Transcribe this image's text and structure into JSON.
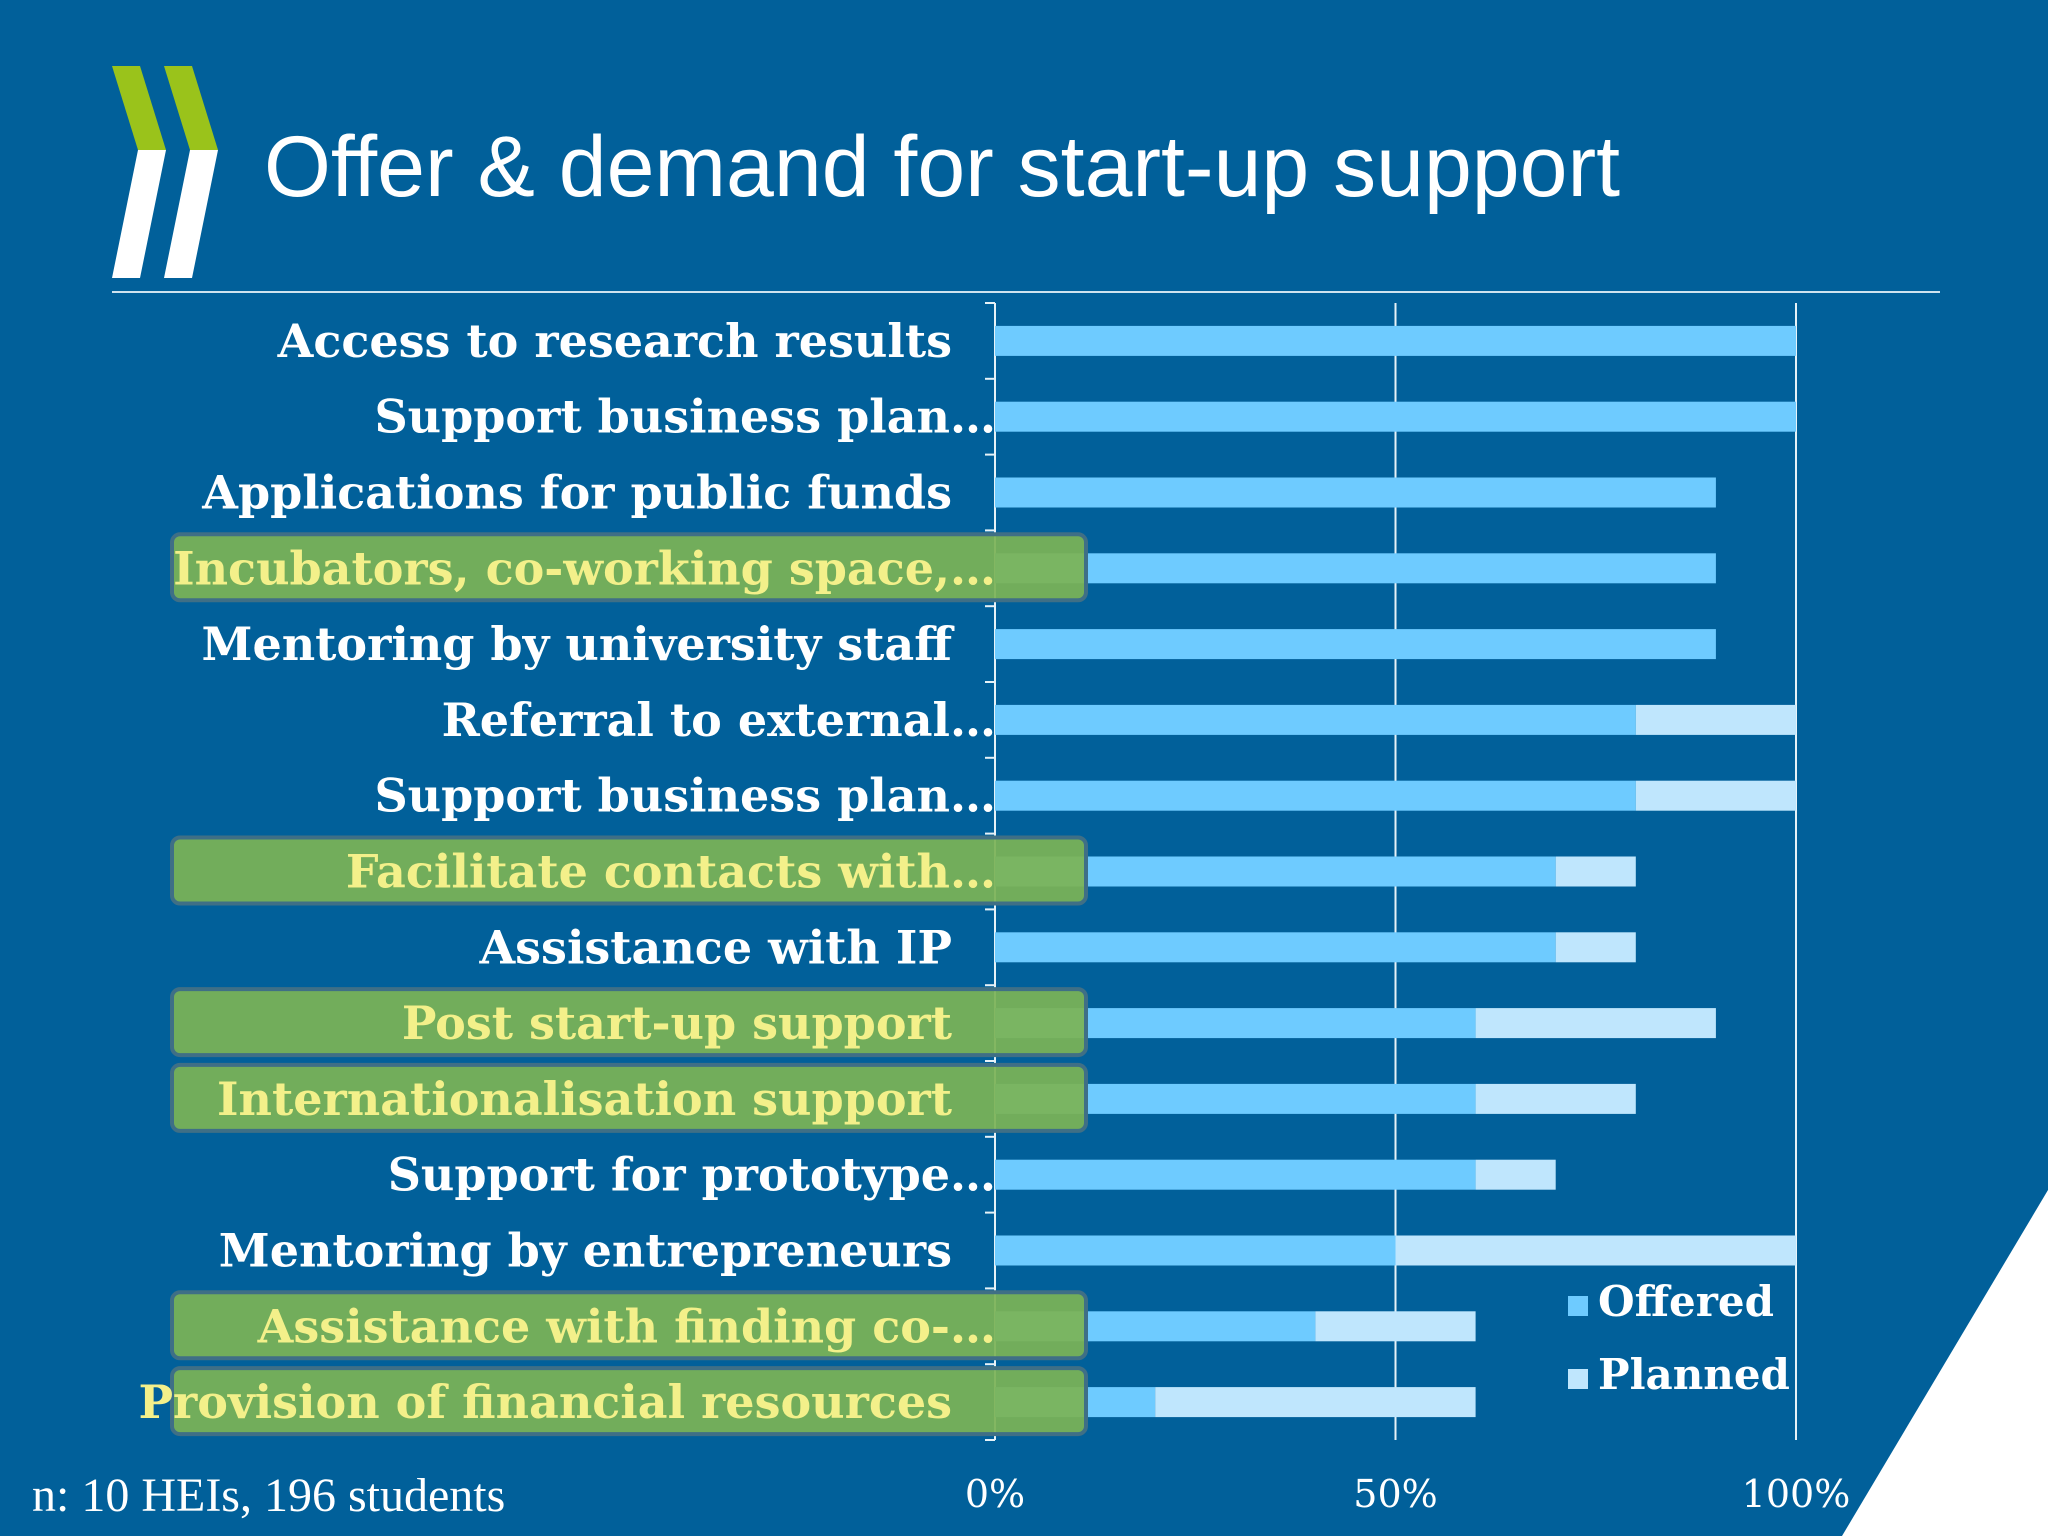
{
  "slide": {
    "title": "Offer & demand for start-up support",
    "footnote": "n: 10 HEIs, 196 students"
  },
  "colors": {
    "background": "#01609a",
    "offered": "#6ecbff",
    "planned": "#bfe6fd",
    "highlight": "#7bb356",
    "highlight_text": "#f3f08a",
    "logo_green": "#9ac31b"
  },
  "chart_data": {
    "type": "bar",
    "orientation": "horizontal",
    "stacked": true,
    "categories": [
      "Access to research results",
      "Support business plan…",
      "Applications for public funds",
      "Incubators, co-working space,…",
      "Mentoring by university staff",
      "Referral to external…",
      "Support business plan…",
      "Facilitate contacts with…",
      "Assistance with IP",
      "Post start-up support",
      "Internationalisation support",
      "Support for prototype…",
      "Mentoring by entrepreneurs",
      "Assistance with finding co-…",
      "Provision of financial resources"
    ],
    "highlighted": [
      false,
      false,
      false,
      true,
      false,
      false,
      false,
      true,
      false,
      true,
      true,
      false,
      false,
      true,
      true
    ],
    "series": [
      {
        "name": "Offered",
        "values": [
          100,
          100,
          90,
          90,
          90,
          80,
          80,
          70,
          70,
          60,
          60,
          60,
          50,
          40,
          20
        ]
      },
      {
        "name": "Planned",
        "values": [
          0,
          0,
          0,
          0,
          0,
          20,
          20,
          10,
          10,
          30,
          20,
          10,
          50,
          20,
          40
        ]
      }
    ],
    "xlim": [
      0,
      100
    ],
    "xticks": [
      "0%",
      "50%",
      "100%"
    ],
    "grid": true,
    "legend_position": "bottom-right"
  }
}
